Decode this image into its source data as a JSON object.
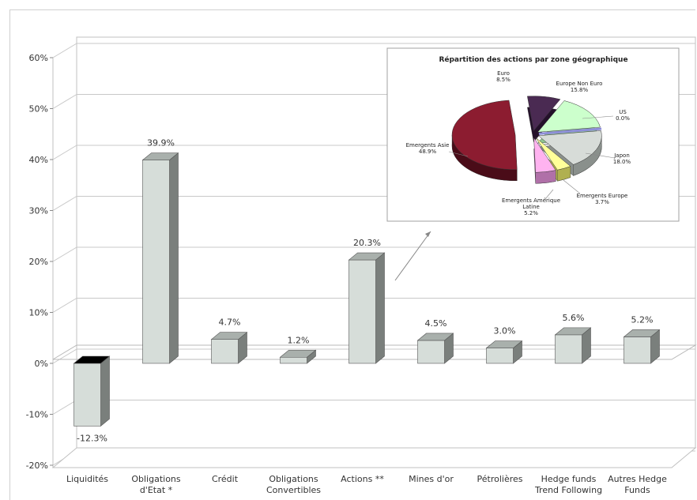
{
  "chart_data": [
    {
      "type": "bar",
      "categories": [
        "Liquidités",
        "Obligations d'Etat *",
        "Crédit",
        "Obligations Convertibles",
        "Actions **",
        "Mines d'or",
        "Pétrolières",
        "Hedge funds Trend Following",
        "Autres Hedge Funds"
      ],
      "category_lines": [
        [
          "Liquidités"
        ],
        [
          "Obligations",
          "d'Etat *"
        ],
        [
          "Crédit"
        ],
        [
          "Obligations",
          "Convertibles"
        ],
        [
          "Actions **"
        ],
        [
          "Mines d'or"
        ],
        [
          "Pétrolières"
        ],
        [
          "Hedge funds",
          "Trend Following"
        ],
        [
          "Autres Hedge",
          "Funds"
        ]
      ],
      "values": [
        -12.3,
        39.9,
        4.7,
        1.2,
        20.3,
        4.5,
        3.0,
        5.6,
        5.2
      ],
      "value_labels": [
        "-12.3%",
        "39.9%",
        "4.7%",
        "1.2%",
        "20.3%",
        "4.5%",
        "3.0%",
        "5.6%",
        "5.2%"
      ],
      "ylim": [
        -20,
        60
      ],
      "yticks": [
        -20,
        -10,
        0,
        10,
        20,
        30,
        40,
        50,
        60
      ],
      "ytick_labels": [
        "-20%",
        "-10%",
        "0%",
        "10%",
        "20%",
        "30%",
        "40%",
        "50%",
        "60%"
      ],
      "grid": true,
      "style": "3d",
      "colors": {
        "bar": "#d6ddd9",
        "bar_side": "#7a7f7c",
        "bar_top": "#a9b0ac",
        "negative_top": "#000000"
      }
    },
    {
      "type": "pie",
      "title": "Répartition des actions par zone géographique",
      "labels": [
        "Euro",
        "Europe Non Euro",
        "US",
        "Japon",
        "Emergents Europe",
        "Emergents Amérique Latine",
        "Emergents Asie"
      ],
      "label_lines": [
        [
          "Euro"
        ],
        [
          "Europe Non Euro"
        ],
        [
          "US"
        ],
        [
          "Japon"
        ],
        [
          "Emergents Europe"
        ],
        [
          "Emergents Amérique",
          "Latine"
        ],
        [
          "Emergents Asie"
        ]
      ],
      "values": [
        8.5,
        15.8,
        0.0,
        18.0,
        3.7,
        5.2,
        48.9
      ],
      "value_labels": [
        "8.5%",
        "15.8%",
        "0.0%",
        "18.0%",
        "3.7%",
        "5.2%",
        "48.9%"
      ],
      "colors": [
        "#4a2a52",
        "#ccffcc",
        "#8e8ed8",
        "#d7dcd8",
        "#ffff99",
        "#ffb3f0",
        "#8c1c30"
      ],
      "side_colors": [
        "#24102a",
        "#8fc48f",
        "#5050a0",
        "#8a908c",
        "#b0b050",
        "#b070a8",
        "#4a0c18"
      ],
      "style": "3d-exploded"
    }
  ]
}
